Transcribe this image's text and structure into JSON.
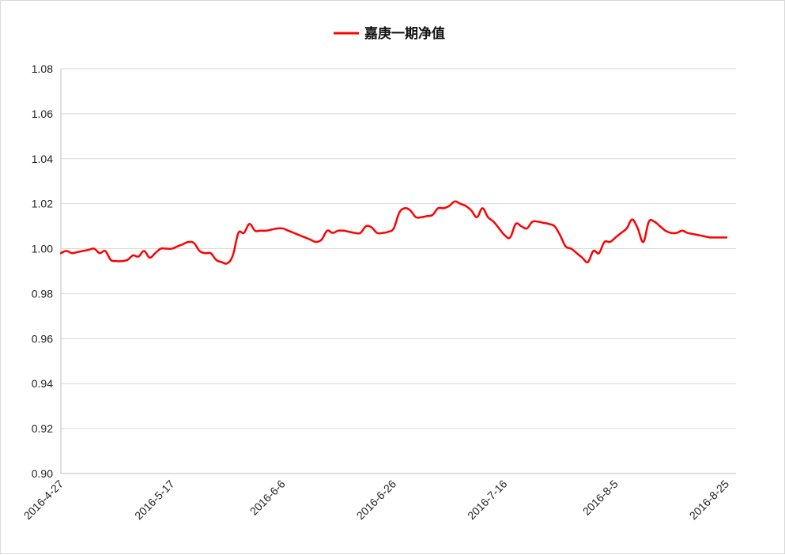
{
  "chart_data": {
    "type": "line",
    "title": "",
    "xlabel": "",
    "ylabel": "",
    "ylim": [
      0.9,
      1.08
    ],
    "yticks": [
      "0.90",
      "0.92",
      "0.94",
      "0.96",
      "0.98",
      "1.00",
      "1.02",
      "1.04",
      "1.06",
      "1.08"
    ],
    "xticks": [
      "2016-4-27",
      "2016-5-17",
      "2016-6-6",
      "2016-6-26",
      "2016-7-16",
      "2016-8-5",
      "2016-8-25"
    ],
    "grid": true,
    "legend_position": "top-center",
    "series": [
      {
        "name": "嘉庚一期净值",
        "color": "#ff0000",
        "points": [
          [
            "2016-4-27",
            0.998
          ],
          [
            "2016-4-28",
            0.999
          ],
          [
            "2016-4-29",
            0.998
          ],
          [
            "2016-4-30",
            0.9985
          ],
          [
            "2016-5-1",
            0.999
          ],
          [
            "2016-5-2",
            0.9995
          ],
          [
            "2016-5-3",
            1.0
          ],
          [
            "2016-5-4",
            0.998
          ],
          [
            "2016-5-5",
            0.999
          ],
          [
            "2016-5-6",
            0.995
          ],
          [
            "2016-5-7",
            0.9945
          ],
          [
            "2016-5-8",
            0.9945
          ],
          [
            "2016-5-9",
            0.995
          ],
          [
            "2016-5-10",
            0.997
          ],
          [
            "2016-5-11",
            0.9965
          ],
          [
            "2016-5-12",
            0.999
          ],
          [
            "2016-5-13",
            0.996
          ],
          [
            "2016-5-14",
            0.998
          ],
          [
            "2016-5-15",
            1.0
          ],
          [
            "2016-5-16",
            1.0
          ],
          [
            "2016-5-17",
            1.0
          ],
          [
            "2016-5-18",
            1.001
          ],
          [
            "2016-5-19",
            1.002
          ],
          [
            "2016-5-20",
            1.003
          ],
          [
            "2016-5-21",
            1.0025
          ],
          [
            "2016-5-22",
            0.999
          ],
          [
            "2016-5-23",
            0.998
          ],
          [
            "2016-5-24",
            0.998
          ],
          [
            "2016-5-25",
            0.995
          ],
          [
            "2016-5-26",
            0.994
          ],
          [
            "2016-5-27",
            0.9935
          ],
          [
            "2016-5-28",
            0.997
          ],
          [
            "2016-5-29",
            1.007
          ],
          [
            "2016-5-30",
            1.007
          ],
          [
            "2016-5-31",
            1.011
          ],
          [
            "2016-6-1",
            1.008
          ],
          [
            "2016-6-2",
            1.008
          ],
          [
            "2016-6-3",
            1.008
          ],
          [
            "2016-6-4",
            1.0085
          ],
          [
            "2016-6-5",
            1.009
          ],
          [
            "2016-6-6",
            1.009
          ],
          [
            "2016-6-7",
            1.008
          ],
          [
            "2016-6-8",
            1.007
          ],
          [
            "2016-6-9",
            1.006
          ],
          [
            "2016-6-10",
            1.005
          ],
          [
            "2016-6-11",
            1.004
          ],
          [
            "2016-6-12",
            1.003
          ],
          [
            "2016-6-13",
            1.004
          ],
          [
            "2016-6-14",
            1.008
          ],
          [
            "2016-6-15",
            1.007
          ],
          [
            "2016-6-16",
            1.008
          ],
          [
            "2016-6-17",
            1.008
          ],
          [
            "2016-6-18",
            1.0075
          ],
          [
            "2016-6-19",
            1.007
          ],
          [
            "2016-6-20",
            1.007
          ],
          [
            "2016-6-21",
            1.01
          ],
          [
            "2016-6-22",
            1.0095
          ],
          [
            "2016-6-23",
            1.007
          ],
          [
            "2016-6-24",
            1.007
          ],
          [
            "2016-6-25",
            1.0075
          ],
          [
            "2016-6-26",
            1.009
          ],
          [
            "2016-6-27",
            1.016
          ],
          [
            "2016-6-28",
            1.018
          ],
          [
            "2016-6-29",
            1.017
          ],
          [
            "2016-6-30",
            1.014
          ],
          [
            "2016-7-1",
            1.014
          ],
          [
            "2016-7-2",
            1.0145
          ],
          [
            "2016-7-3",
            1.015
          ],
          [
            "2016-7-4",
            1.018
          ],
          [
            "2016-7-5",
            1.018
          ],
          [
            "2016-7-6",
            1.019
          ],
          [
            "2016-7-7",
            1.021
          ],
          [
            "2016-7-8",
            1.02
          ],
          [
            "2016-7-9",
            1.019
          ],
          [
            "2016-7-10",
            1.017
          ],
          [
            "2016-7-11",
            1.014
          ],
          [
            "2016-7-12",
            1.018
          ],
          [
            "2016-7-13",
            1.014
          ],
          [
            "2016-7-14",
            1.012
          ],
          [
            "2016-7-15",
            1.009
          ],
          [
            "2016-7-16",
            1.006
          ],
          [
            "2016-7-17",
            1.005
          ],
          [
            "2016-7-18",
            1.011
          ],
          [
            "2016-7-19",
            1.01
          ],
          [
            "2016-7-20",
            1.009
          ],
          [
            "2016-7-21",
            1.012
          ],
          [
            "2016-7-22",
            1.012
          ],
          [
            "2016-7-23",
            1.0115
          ],
          [
            "2016-7-24",
            1.011
          ],
          [
            "2016-7-25",
            1.01
          ],
          [
            "2016-7-26",
            1.006
          ],
          [
            "2016-7-27",
            1.001
          ],
          [
            "2016-7-28",
            1.0
          ],
          [
            "2016-7-29",
            0.998
          ],
          [
            "2016-7-30",
            0.996
          ],
          [
            "2016-7-31",
            0.994
          ],
          [
            "2016-8-1",
            0.999
          ],
          [
            "2016-8-2",
            0.998
          ],
          [
            "2016-8-3",
            1.003
          ],
          [
            "2016-8-4",
            1.003
          ],
          [
            "2016-8-5",
            1.005
          ],
          [
            "2016-8-6",
            1.007
          ],
          [
            "2016-8-7",
            1.009
          ],
          [
            "2016-8-8",
            1.013
          ],
          [
            "2016-8-9",
            1.009
          ],
          [
            "2016-8-10",
            1.003
          ],
          [
            "2016-8-11",
            1.012
          ],
          [
            "2016-8-12",
            1.012
          ],
          [
            "2016-8-13",
            1.01
          ],
          [
            "2016-8-14",
            1.008
          ],
          [
            "2016-8-15",
            1.007
          ],
          [
            "2016-8-16",
            1.007
          ],
          [
            "2016-8-17",
            1.008
          ],
          [
            "2016-8-18",
            1.007
          ],
          [
            "2016-8-19",
            1.0065
          ],
          [
            "2016-8-20",
            1.006
          ],
          [
            "2016-8-21",
            1.0055
          ],
          [
            "2016-8-22",
            1.005
          ],
          [
            "2016-8-23",
            1.005
          ],
          [
            "2016-8-24",
            1.005
          ],
          [
            "2016-8-25",
            1.005
          ]
        ]
      }
    ]
  }
}
